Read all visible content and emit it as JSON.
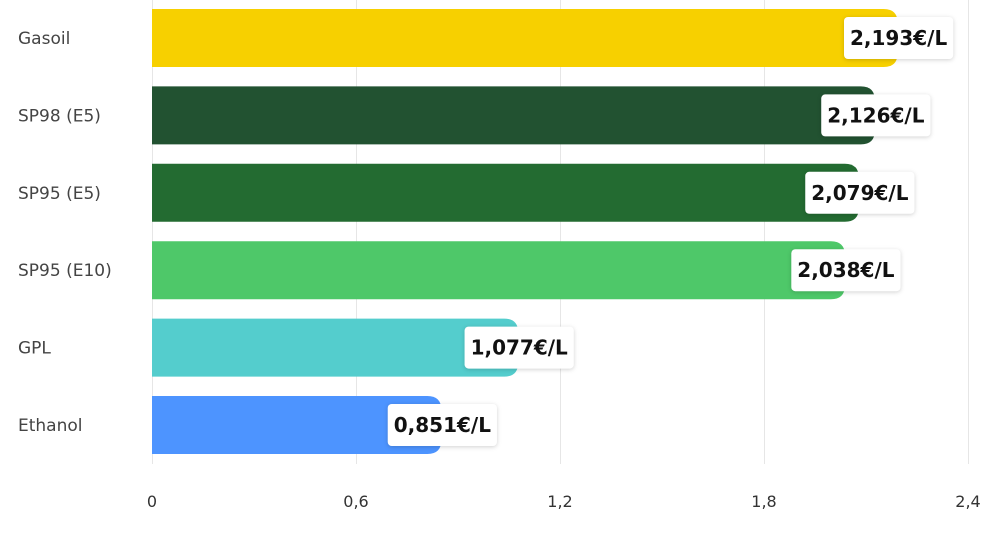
{
  "chart_data": {
    "type": "bar",
    "orientation": "horizontal",
    "categories": [
      "Gasoil",
      "SP98 (E5)",
      "SP95 (E5)",
      "SP95 (E10)",
      "GPL",
      "Ethanol"
    ],
    "values": [
      2.193,
      2.126,
      2.079,
      2.038,
      1.077,
      0.851
    ],
    "value_labels": [
      "2,193€/L",
      "2,126€/L",
      "2,079€/L",
      "2,038€/L",
      "1,077€/L",
      "0,851€/L"
    ],
    "colors": [
      "#f7d000",
      "#225231",
      "#236b31",
      "#4ec869",
      "#54cdcd",
      "#4d94ff"
    ],
    "xlim": [
      0,
      2.4
    ],
    "ticks": [
      0,
      0.6,
      1.2,
      1.8,
      2.4
    ],
    "tick_labels": [
      "0",
      "0,6",
      "1,2",
      "1,8",
      "2,4"
    ],
    "grid": true,
    "title": "",
    "xlabel": "",
    "ylabel": ""
  }
}
